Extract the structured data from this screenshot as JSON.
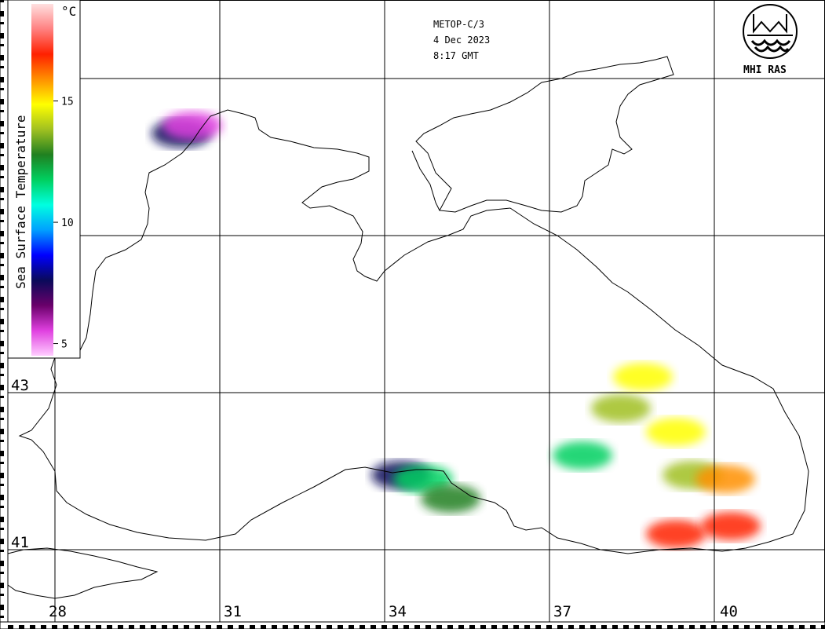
{
  "header": {
    "satellite": "METOP-C/3",
    "date": "4 Dec 2023",
    "time": "8:17 GMT"
  },
  "logo": {
    "text": "MHI RAS"
  },
  "colorbar": {
    "title": "Sea Surface Temperature",
    "unit": "°C",
    "ticks": [
      "15",
      "10",
      "5"
    ],
    "range": [
      4.5,
      19
    ],
    "stops": [
      "#ffccff",
      "#e040e0",
      "#6a006a",
      "#0a0a5a",
      "#0000ff",
      "#00a0ff",
      "#00ffe0",
      "#00d060",
      "#208020",
      "#a0c020",
      "#ffff00",
      "#ff9000",
      "#ff2000",
      "#ff8080",
      "#ffe0e0"
    ]
  },
  "axes": {
    "longitude_labels": [
      "28",
      "31",
      "34",
      "37",
      "40"
    ],
    "latitude_labels": [
      "43",
      "41"
    ]
  },
  "sst_patches": [
    {
      "lon": 30.3,
      "lat": 46.3,
      "temp": 8
    },
    {
      "lon": 30.5,
      "lat": 46.4,
      "temp": 6
    },
    {
      "lon": 34.3,
      "lat": 41.95,
      "temp": 8
    },
    {
      "lon": 34.7,
      "lat": 41.9,
      "temp": 12
    },
    {
      "lon": 35.2,
      "lat": 41.65,
      "temp": 13
    },
    {
      "lon": 37.6,
      "lat": 42.2,
      "temp": 12
    },
    {
      "lon": 38.3,
      "lat": 42.8,
      "temp": 14
    },
    {
      "lon": 38.7,
      "lat": 43.2,
      "temp": 15
    },
    {
      "lon": 39.3,
      "lat": 42.5,
      "temp": 15
    },
    {
      "lon": 39.6,
      "lat": 41.95,
      "temp": 14
    },
    {
      "lon": 40.2,
      "lat": 41.9,
      "temp": 16
    },
    {
      "lon": 39.3,
      "lat": 41.2,
      "temp": 17
    },
    {
      "lon": 40.3,
      "lat": 41.3,
      "temp": 17
    }
  ]
}
